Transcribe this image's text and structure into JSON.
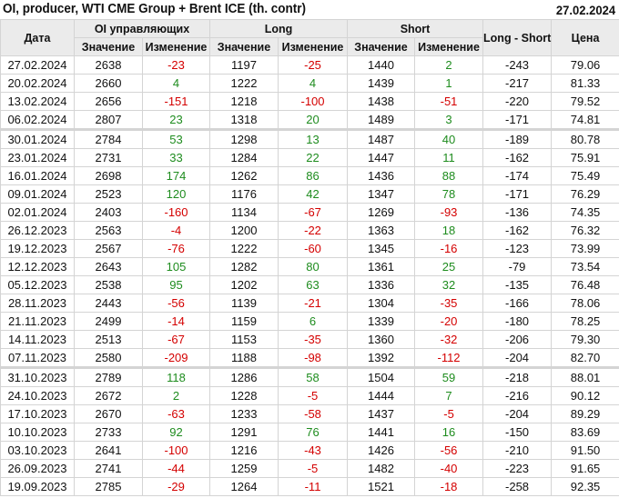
{
  "header": {
    "title": "OI, producer, WTI CME Group + Brent ICE (th. contr)",
    "date": "27.02.2024"
  },
  "columns": {
    "date": "Дата",
    "oi": "OI управляющих",
    "long": "Long",
    "short": "Short",
    "long_short": "Long - Short",
    "price": "Цена",
    "value": "Значение",
    "change": "Изменение"
  },
  "colors": {
    "positive": "#1e8c1e",
    "negative": "#d40000",
    "header_bg": "#ebebeb"
  },
  "rows": [
    {
      "date": "27.02.2024",
      "oi": "2638",
      "oi_chg": "-23",
      "long": "1197",
      "long_chg": "-25",
      "short": "1440",
      "short_chg": "2",
      "ls": "-243",
      "price": "79.06"
    },
    {
      "date": "20.02.2024",
      "oi": "2660",
      "oi_chg": "4",
      "long": "1222",
      "long_chg": "4",
      "short": "1439",
      "short_chg": "1",
      "ls": "-217",
      "price": "81.33"
    },
    {
      "date": "13.02.2024",
      "oi": "2656",
      "oi_chg": "-151",
      "long": "1218",
      "long_chg": "-100",
      "short": "1438",
      "short_chg": "-51",
      "ls": "-220",
      "price": "79.52"
    },
    {
      "date": "06.02.2024",
      "oi": "2807",
      "oi_chg": "23",
      "long": "1318",
      "long_chg": "20",
      "short": "1489",
      "short_chg": "3",
      "ls": "-171",
      "price": "74.81"
    },
    {
      "date": "30.01.2024",
      "oi": "2784",
      "oi_chg": "53",
      "long": "1298",
      "long_chg": "13",
      "short": "1487",
      "short_chg": "40",
      "ls": "-189",
      "price": "80.78",
      "sep": true
    },
    {
      "date": "23.01.2024",
      "oi": "2731",
      "oi_chg": "33",
      "long": "1284",
      "long_chg": "22",
      "short": "1447",
      "short_chg": "11",
      "ls": "-162",
      "price": "75.91"
    },
    {
      "date": "16.01.2024",
      "oi": "2698",
      "oi_chg": "174",
      "long": "1262",
      "long_chg": "86",
      "short": "1436",
      "short_chg": "88",
      "ls": "-174",
      "price": "75.49"
    },
    {
      "date": "09.01.2024",
      "oi": "2523",
      "oi_chg": "120",
      "long": "1176",
      "long_chg": "42",
      "short": "1347",
      "short_chg": "78",
      "ls": "-171",
      "price": "76.29"
    },
    {
      "date": "02.01.2024",
      "oi": "2403",
      "oi_chg": "-160",
      "long": "1134",
      "long_chg": "-67",
      "short": "1269",
      "short_chg": "-93",
      "ls": "-136",
      "price": "74.35"
    },
    {
      "date": "26.12.2023",
      "oi": "2563",
      "oi_chg": "-4",
      "long": "1200",
      "long_chg": "-22",
      "short": "1363",
      "short_chg": "18",
      "ls": "-162",
      "price": "76.32"
    },
    {
      "date": "19.12.2023",
      "oi": "2567",
      "oi_chg": "-76",
      "long": "1222",
      "long_chg": "-60",
      "short": "1345",
      "short_chg": "-16",
      "ls": "-123",
      "price": "73.99"
    },
    {
      "date": "12.12.2023",
      "oi": "2643",
      "oi_chg": "105",
      "long": "1282",
      "long_chg": "80",
      "short": "1361",
      "short_chg": "25",
      "ls": "-79",
      "price": "73.54"
    },
    {
      "date": "05.12.2023",
      "oi": "2538",
      "oi_chg": "95",
      "long": "1202",
      "long_chg": "63",
      "short": "1336",
      "short_chg": "32",
      "ls": "-135",
      "price": "76.48"
    },
    {
      "date": "28.11.2023",
      "oi": "2443",
      "oi_chg": "-56",
      "long": "1139",
      "long_chg": "-21",
      "short": "1304",
      "short_chg": "-35",
      "ls": "-166",
      "price": "78.06"
    },
    {
      "date": "21.11.2023",
      "oi": "2499",
      "oi_chg": "-14",
      "long": "1159",
      "long_chg": "6",
      "short": "1339",
      "short_chg": "-20",
      "ls": "-180",
      "price": "78.25"
    },
    {
      "date": "14.11.2023",
      "oi": "2513",
      "oi_chg": "-67",
      "long": "1153",
      "long_chg": "-35",
      "short": "1360",
      "short_chg": "-32",
      "ls": "-206",
      "price": "79.30"
    },
    {
      "date": "07.11.2023",
      "oi": "2580",
      "oi_chg": "-209",
      "long": "1188",
      "long_chg": "-98",
      "short": "1392",
      "short_chg": "-112",
      "ls": "-204",
      "price": "82.70"
    },
    {
      "date": "31.10.2023",
      "oi": "2789",
      "oi_chg": "118",
      "long": "1286",
      "long_chg": "58",
      "short": "1504",
      "short_chg": "59",
      "ls": "-218",
      "price": "88.01",
      "sep": true
    },
    {
      "date": "24.10.2023",
      "oi": "2672",
      "oi_chg": "2",
      "long": "1228",
      "long_chg": "-5",
      "short": "1444",
      "short_chg": "7",
      "ls": "-216",
      "price": "90.12"
    },
    {
      "date": "17.10.2023",
      "oi": "2670",
      "oi_chg": "-63",
      "long": "1233",
      "long_chg": "-58",
      "short": "1437",
      "short_chg": "-5",
      "ls": "-204",
      "price": "89.29"
    },
    {
      "date": "10.10.2023",
      "oi": "2733",
      "oi_chg": "92",
      "long": "1291",
      "long_chg": "76",
      "short": "1441",
      "short_chg": "16",
      "ls": "-150",
      "price": "83.69"
    },
    {
      "date": "03.10.2023",
      "oi": "2641",
      "oi_chg": "-100",
      "long": "1216",
      "long_chg": "-43",
      "short": "1426",
      "short_chg": "-56",
      "ls": "-210",
      "price": "91.50"
    },
    {
      "date": "26.09.2023",
      "oi": "2741",
      "oi_chg": "-44",
      "long": "1259",
      "long_chg": "-5",
      "short": "1482",
      "short_chg": "-40",
      "ls": "-223",
      "price": "91.65"
    },
    {
      "date": "19.09.2023",
      "oi": "2785",
      "oi_chg": "-29",
      "long": "1264",
      "long_chg": "-11",
      "short": "1521",
      "short_chg": "-18",
      "ls": "-258",
      "price": "92.35"
    }
  ]
}
